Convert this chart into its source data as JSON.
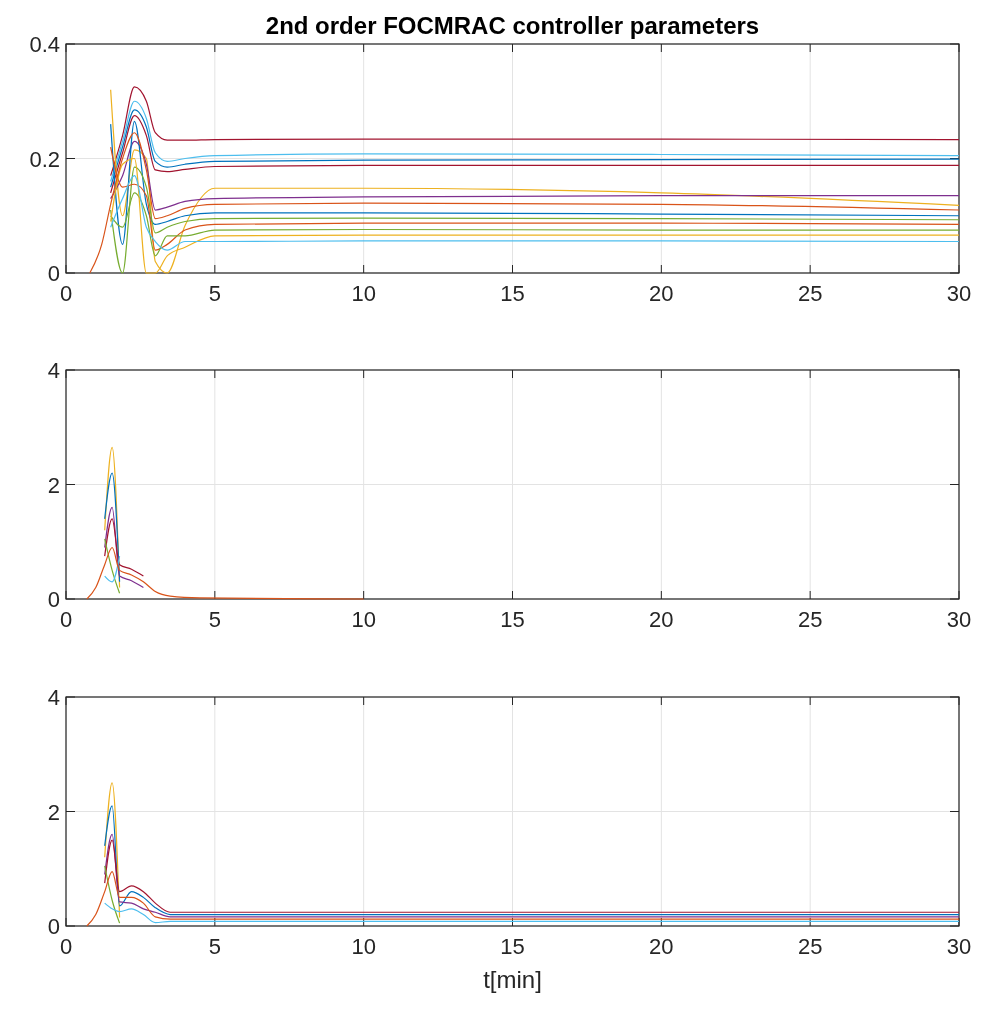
{
  "chart_data": [
    {
      "type": "line",
      "title": "2nd order FOCMRAC controller parameters",
      "xlim": [
        0,
        30
      ],
      "xticks": [
        0,
        5,
        10,
        15,
        20,
        25,
        30
      ],
      "ylim": [
        0,
        0.4
      ],
      "yticks": [
        0,
        0.2,
        0.4
      ],
      "grid": true,
      "line_style": "solid",
      "series": [
        {
          "color": "#a2142f",
          "x": [
            1.5,
            1.9,
            2.3,
            2.7,
            3.0,
            3.4,
            4,
            5,
            10,
            20,
            30
          ],
          "values": [
            0.17,
            0.24,
            0.325,
            0.3,
            0.245,
            0.232,
            0.232,
            0.233,
            0.234,
            0.234,
            0.233
          ]
        },
        {
          "color": "#4dbeee",
          "x": [
            1.5,
            1.9,
            2.3,
            2.7,
            3.0,
            3.4,
            4,
            5,
            10,
            20,
            30
          ],
          "values": [
            0.16,
            0.23,
            0.3,
            0.27,
            0.21,
            0.195,
            0.2,
            0.205,
            0.208,
            0.207,
            0.205
          ]
        },
        {
          "color": "#0072bd",
          "x": [
            1.5,
            1.9,
            2.3,
            2.7,
            3.0,
            3.4,
            4,
            5,
            10,
            20,
            30
          ],
          "values": [
            0.15,
            0.22,
            0.285,
            0.255,
            0.195,
            0.185,
            0.19,
            0.195,
            0.197,
            0.198,
            0.199
          ]
        },
        {
          "color": "#a2142f",
          "x": [
            1.5,
            1.9,
            2.3,
            2.7,
            3.0,
            3.4,
            4,
            5,
            10,
            20,
            30
          ],
          "values": [
            0.14,
            0.21,
            0.275,
            0.24,
            0.18,
            0.177,
            0.181,
            0.186,
            0.188,
            0.188,
            0.188
          ]
        },
        {
          "color": "#edb120",
          "x": [
            1.5,
            1.9,
            2.3,
            2.7,
            3.0,
            3.4,
            4,
            5,
            10,
            20,
            30
          ],
          "values": [
            0.32,
            0.1,
            0.215,
            0.2,
            0.02,
            0.0,
            0.083,
            0.148,
            0.148,
            0.14,
            0.118
          ]
        },
        {
          "color": "#7e2f8e",
          "x": [
            1.5,
            1.9,
            2.3,
            2.7,
            3.0,
            3.4,
            4,
            5,
            10,
            20,
            30
          ],
          "values": [
            0.13,
            0.17,
            0.23,
            0.19,
            0.11,
            0.115,
            0.125,
            0.13,
            0.133,
            0.135,
            0.135
          ]
        },
        {
          "color": "#0072bd",
          "x": [
            1.5,
            1.9,
            2.3,
            2.7,
            3.0,
            3.4,
            4,
            5,
            10,
            20,
            30
          ],
          "values": [
            0.26,
            0.05,
            0.265,
            0.12,
            0.085,
            0.09,
            0.1,
            0.105,
            0.105,
            0.103,
            0.1
          ]
        },
        {
          "color": "#77ac30",
          "x": [
            1.5,
            1.9,
            2.3,
            2.7,
            3.0,
            3.4,
            4,
            5,
            10,
            20,
            30
          ],
          "values": [
            0.11,
            0.0,
            0.185,
            0.15,
            0.07,
            0.08,
            0.09,
            0.095,
            0.096,
            0.095,
            0.093
          ]
        },
        {
          "color": "#d95319",
          "x": [
            1.5,
            1.9,
            2.3,
            2.7,
            3.0,
            3.4,
            4,
            5,
            10,
            20,
            30
          ],
          "values": [
            0.22,
            0.15,
            0.155,
            0.135,
            0.04,
            0.05,
            0.075,
            0.085,
            0.087,
            0.087,
            0.085
          ]
        },
        {
          "color": "#77ac30",
          "x": [
            1.5,
            1.9,
            2.3,
            2.7,
            3.0,
            3.4,
            4,
            5,
            10,
            20,
            30
          ],
          "values": [
            0.1,
            0.08,
            0.14,
            0.1,
            0.03,
            0.065,
            0.065,
            0.075,
            0.076,
            0.075,
            0.075
          ]
        },
        {
          "color": "#edb120",
          "x": [
            1.5,
            1.9,
            2.3,
            2.7,
            3.0,
            3.4,
            4,
            5,
            10,
            20,
            30
          ],
          "values": [
            0.09,
            0.19,
            0.2,
            0.0,
            0.0,
            0.03,
            0.045,
            0.065,
            0.066,
            0.066,
            0.066
          ]
        },
        {
          "color": "#4dbeee",
          "x": [
            1.5,
            1.9,
            2.3,
            2.7,
            3.0,
            3.4,
            4,
            5,
            10,
            20,
            30
          ],
          "values": [
            0.08,
            0.13,
            0.17,
            0.08,
            0.055,
            0.04,
            0.055,
            0.055,
            0.056,
            0.056,
            0.055
          ]
        },
        {
          "color": "#d95319",
          "x": [
            0.8,
            1.2,
            1.5,
            1.9,
            2.3,
            2.7,
            3.0,
            3.4,
            4,
            5,
            10,
            20,
            30
          ],
          "values": [
            0,
            0.05,
            0.12,
            0.2,
            0.245,
            0.18,
            0.095,
            0.1,
            0.113,
            0.12,
            0.122,
            0.12,
            0.11
          ]
        }
      ]
    },
    {
      "type": "line",
      "xlim": [
        0,
        30
      ],
      "xticks": [
        0,
        5,
        10,
        15,
        20,
        25,
        30
      ],
      "ylim": [
        0,
        4
      ],
      "yticks": [
        0,
        2,
        4
      ],
      "grid": true,
      "line_style": "solid",
      "series": [
        {
          "color": "#edb120",
          "x": [
            1.3,
            1.55,
            1.8
          ],
          "values": [
            1.2,
            2.65,
            0.2
          ]
        },
        {
          "color": "#0072bd",
          "x": [
            1.3,
            1.55,
            1.8
          ],
          "values": [
            1.4,
            2.2,
            0.3
          ]
        },
        {
          "color": "#7e2f8e",
          "x": [
            1.3,
            1.55,
            1.8,
            2.2,
            2.6
          ],
          "values": [
            0.9,
            1.6,
            0.4,
            0.32,
            0.2
          ]
        },
        {
          "color": "#a2142f",
          "x": [
            1.3,
            1.55,
            1.8,
            2.2,
            2.6
          ],
          "values": [
            0.75,
            1.4,
            0.6,
            0.52,
            0.4
          ]
        },
        {
          "color": "#77ac30",
          "x": [
            1.3,
            1.55,
            1.8
          ],
          "values": [
            1.05,
            0.5,
            0.1
          ]
        },
        {
          "color": "#4dbeee",
          "x": [
            1.3,
            1.55,
            1.8
          ],
          "values": [
            0.4,
            0.3,
            0.75
          ]
        },
        {
          "color": "#d95319",
          "x": [
            0.7,
            1.0,
            1.3,
            1.55,
            1.8,
            2.2,
            2.6,
            3.0,
            3.5,
            4.5,
            10
          ],
          "values": [
            0,
            0.2,
            0.6,
            0.9,
            0.5,
            0.42,
            0.3,
            0.13,
            0.05,
            0.02,
            0
          ]
        }
      ]
    },
    {
      "type": "line",
      "xlabel": "t[min]",
      "xlim": [
        0,
        30
      ],
      "xticks": [
        0,
        5,
        10,
        15,
        20,
        25,
        30
      ],
      "ylim": [
        0,
        4
      ],
      "yticks": [
        0,
        2,
        4
      ],
      "grid": true,
      "line_style": "solid",
      "series": [
        {
          "color": "#edb120",
          "x": [
            1.3,
            1.55,
            1.8
          ],
          "values": [
            1.2,
            2.5,
            0.15
          ]
        },
        {
          "color": "#0072bd",
          "x": [
            1.3,
            1.55,
            1.8,
            2.2,
            2.6,
            3.0,
            3.5,
            4.5,
            10,
            30
          ],
          "values": [
            1.4,
            2.1,
            0.35,
            0.6,
            0.5,
            0.32,
            0.2,
            0.2,
            0.2,
            0.2
          ]
        },
        {
          "color": "#7e2f8e",
          "x": [
            1.3,
            1.55,
            1.8,
            2.2,
            2.6,
            3.0,
            3.5,
            4.5,
            10,
            30
          ],
          "values": [
            0.9,
            1.6,
            0.42,
            0.4,
            0.3,
            0.24,
            0.16,
            0.16,
            0.16,
            0.16
          ]
        },
        {
          "color": "#a2142f",
          "x": [
            1.3,
            1.55,
            1.8,
            2.2,
            2.6,
            3.0,
            3.5,
            4.5,
            10,
            30
          ],
          "values": [
            0.75,
            1.5,
            0.6,
            0.7,
            0.6,
            0.4,
            0.24,
            0.24,
            0.24,
            0.24
          ]
        },
        {
          "color": "#77ac30",
          "x": [
            1.3,
            1.55,
            1.8
          ],
          "values": [
            1.05,
            0.45,
            0.05
          ]
        },
        {
          "color": "#4dbeee",
          "x": [
            1.3,
            1.55,
            1.8,
            2.2,
            2.6,
            3.0,
            3.5,
            4.5,
            10,
            30
          ],
          "values": [
            0.4,
            0.3,
            0.25,
            0.3,
            0.2,
            0.06,
            0.08,
            0.08,
            0.08,
            0.08
          ]
        },
        {
          "color": "#d95319",
          "x": [
            0.7,
            1.0,
            1.3,
            1.55,
            1.8,
            2.2,
            2.6,
            3.0,
            3.5,
            4.5,
            10,
            30
          ],
          "values": [
            0,
            0.2,
            0.6,
            0.95,
            0.5,
            0.5,
            0.4,
            0.16,
            0.12,
            0.12,
            0.12,
            0.12
          ]
        }
      ]
    }
  ]
}
